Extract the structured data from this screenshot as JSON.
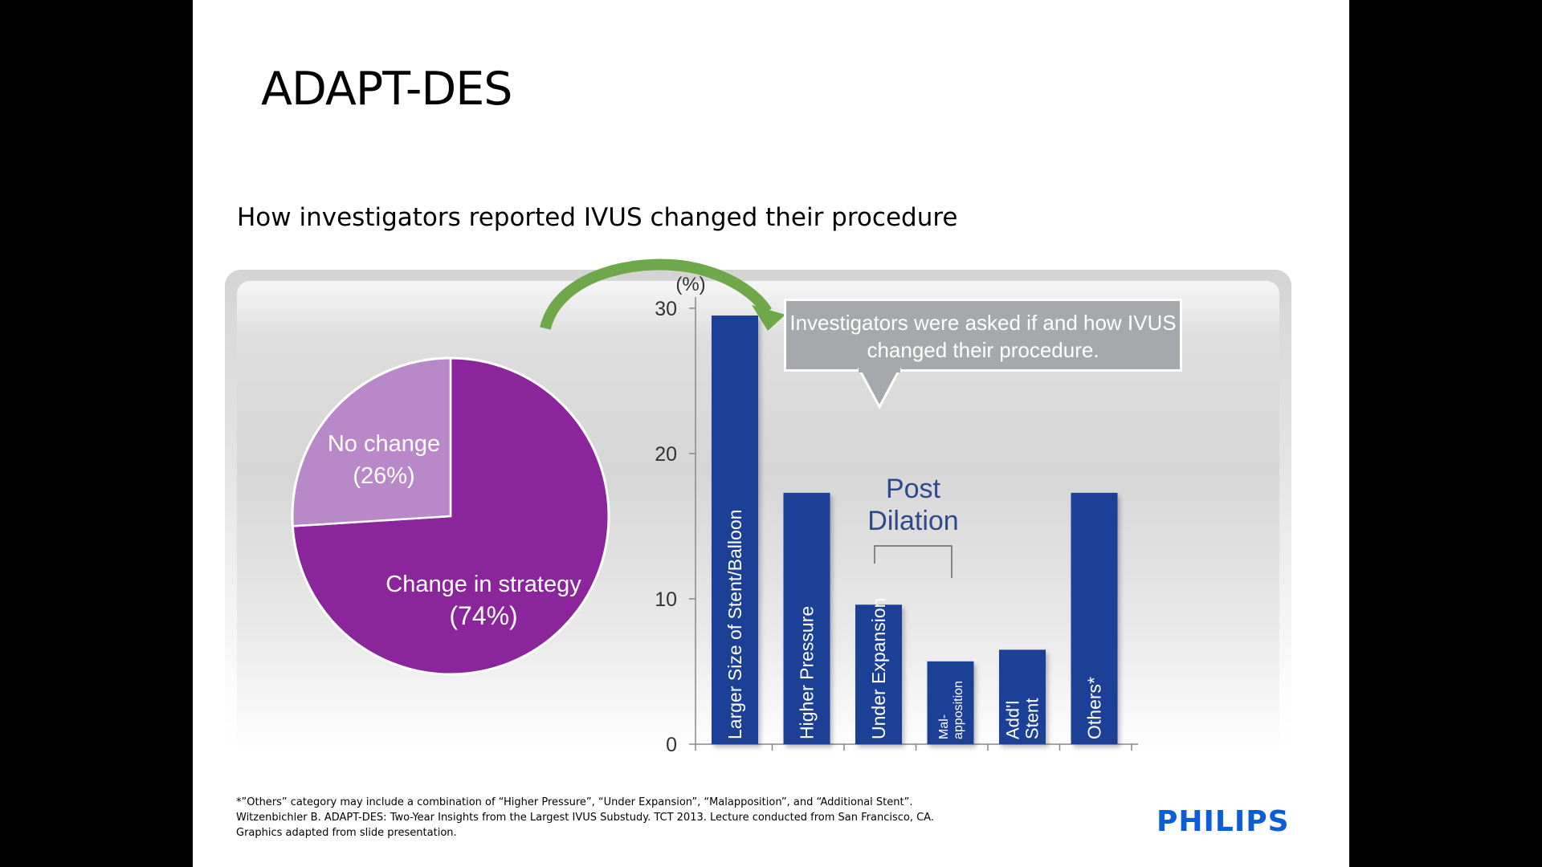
{
  "slide": {
    "title": "ADAPT-DES",
    "subtitle": "How investigators reported IVUS changed their procedure",
    "callout": "Investigators were asked if and how IVUS changed their procedure.",
    "footnotes": [
      "*”Others” category may include a combination of “Higher Pressure”, “Under Expansion”, “Malapposition”, and “Additional Stent”.",
      "Witzenbichler B. ADAPT-DES: Two-Year Insights from the Largest IVUS Substudy. TCT 2013. Lecture conducted from San Francisco, CA.",
      "Graphics adapted from slide presentation."
    ],
    "logo": "PHILIPS"
  },
  "colors": {
    "pie_change": "#8a259c",
    "pie_nochange": "#b888c8",
    "bar": "#1f3f96",
    "arrow": "#6fa84a",
    "callout_bg": "#a6a8ab",
    "post_dilation_text": "#2e4a8c",
    "logo": "#0b5ed7"
  },
  "chart_data": [
    {
      "type": "pie",
      "slices": [
        {
          "label_line1": "Change in strategy",
          "label_line2": "(74%)",
          "value": 74
        },
        {
          "label_line1": "No change",
          "label_line2": "(26%)",
          "value": 26
        }
      ]
    },
    {
      "type": "bar",
      "ylabel": "(%)",
      "ylim": [
        0,
        30
      ],
      "yticks": [
        0,
        10,
        20,
        30
      ],
      "categories": [
        [
          "Larger Size of Stent/Balloon"
        ],
        [
          "Higher Pressure"
        ],
        [
          "Under Expansion"
        ],
        [
          "Mal-",
          "apposition"
        ],
        [
          "Add'l",
          "Stent"
        ],
        [
          "Others*"
        ]
      ],
      "values": [
        29.5,
        17.3,
        9.6,
        5.7,
        6.5,
        17.3
      ],
      "annotation": {
        "lines": [
          "Post",
          "Dilation"
        ]
      }
    }
  ]
}
